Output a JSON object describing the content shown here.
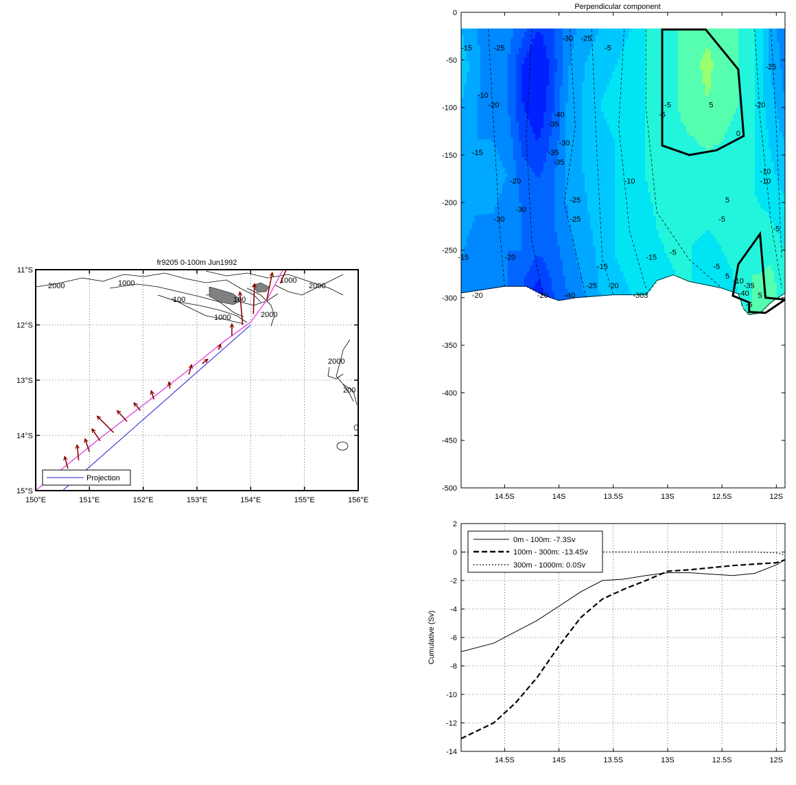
{
  "chart_data": [
    {
      "type": "map",
      "title": "fr9205 0-100m Jun1992",
      "x_ticks": [
        "150°E",
        "151°E",
        "152°E",
        "153°E",
        "154°E",
        "155°E",
        "156°E"
      ],
      "y_ticks": [
        "11°S",
        "12°S",
        "13°S",
        "14°S",
        "15°S"
      ],
      "xlim": [
        150,
        156
      ],
      "ylim": [
        -15,
        -11
      ],
      "grid": true,
      "legend": [
        {
          "label": "Projection",
          "color": "#1f1fd6"
        }
      ],
      "legend_position": "bottom-left",
      "track_color": "#e040e0",
      "projection_color": "#1f1fd6",
      "arrow_color": "#8b0000",
      "contour_labels": [
        "2000",
        "1000",
        "1000",
        "2000",
        "100",
        "100",
        "1000",
        "2000",
        "2000",
        "100",
        "100",
        "2000",
        "200"
      ],
      "projection_line": {
        "from": [
          150.5,
          -15.0
        ],
        "to": [
          154.0,
          -12.0
        ]
      },
      "track": [
        [
          150.0,
          -15.0
        ],
        [
          150.5,
          -14.6
        ],
        [
          151.2,
          -14.05
        ],
        [
          152.0,
          -13.45
        ],
        [
          152.8,
          -12.85
        ],
        [
          153.5,
          -12.3
        ],
        [
          154.0,
          -11.95
        ],
        [
          154.3,
          -11.55
        ],
        [
          154.6,
          -11.0
        ]
      ],
      "velocity_vectors": [
        {
          "lon": 150.6,
          "lat": -14.6,
          "u": -0.06,
          "v": 0.22
        },
        {
          "lon": 150.8,
          "lat": -14.45,
          "u": -0.03,
          "v": 0.28
        },
        {
          "lon": 151.0,
          "lat": -14.3,
          "u": -0.08,
          "v": 0.24
        },
        {
          "lon": 151.2,
          "lat": -14.1,
          "u": -0.15,
          "v": 0.22
        },
        {
          "lon": 151.45,
          "lat": -13.95,
          "u": -0.3,
          "v": 0.3
        },
        {
          "lon": 151.7,
          "lat": -13.75,
          "u": -0.18,
          "v": 0.2
        },
        {
          "lon": 151.95,
          "lat": -13.55,
          "u": -0.12,
          "v": 0.14
        },
        {
          "lon": 152.2,
          "lat": -13.35,
          "u": -0.05,
          "v": 0.16
        },
        {
          "lon": 152.5,
          "lat": -13.15,
          "u": -0.02,
          "v": 0.12
        },
        {
          "lon": 152.85,
          "lat": -12.9,
          "u": 0.05,
          "v": 0.18
        },
        {
          "lon": 153.1,
          "lat": -12.7,
          "u": 0.1,
          "v": 0.08
        },
        {
          "lon": 153.4,
          "lat": -12.45,
          "u": 0.04,
          "v": 0.1
        },
        {
          "lon": 153.65,
          "lat": -12.2,
          "u": 0.0,
          "v": 0.22
        },
        {
          "lon": 153.85,
          "lat": -12.0,
          "u": -0.05,
          "v": 0.6
        },
        {
          "lon": 154.05,
          "lat": -11.8,
          "u": 0.02,
          "v": 0.55
        },
        {
          "lon": 154.3,
          "lat": -11.55,
          "u": 0.1,
          "v": 0.5
        },
        {
          "lon": 154.55,
          "lat": -11.25,
          "u": 0.15,
          "v": 0.35
        }
      ]
    },
    {
      "type": "contour",
      "title": "Perpendicular component",
      "x_ticks": [
        "14.5S",
        "14S",
        "13.5S",
        "13S",
        "12.5S",
        "12S"
      ],
      "x_tick_values": [
        -14.5,
        -14.0,
        -13.5,
        -13.0,
        -12.5,
        -12.0
      ],
      "xlim": [
        -14.9,
        -11.92
      ],
      "y_ticks": [
        "0",
        "-50",
        "-100",
        "-150",
        "-200",
        "-250",
        "-300",
        "-350",
        "-400",
        "-450",
        "-500"
      ],
      "ylim": [
        -500,
        0
      ],
      "data_top_depth": -17,
      "levels": [
        -40,
        -35,
        -30,
        -25,
        -20,
        -15,
        -10,
        -5,
        0,
        5,
        10,
        15,
        20,
        25
      ],
      "colors": [
        "#0020ff",
        "#0044ff",
        "#0066ff",
        "#0088ff",
        "#00a8ff",
        "#00c8ff",
        "#00e4f4",
        "#22f5dc",
        "#56ffb0",
        "#9aff6e",
        "#d6ff3a",
        "#ffec00",
        "#ffb000",
        "#ff7000"
      ],
      "bottom_profile": [
        [
          -14.9,
          -295
        ],
        [
          -14.5,
          -288
        ],
        [
          -14.3,
          -288
        ],
        [
          -14.15,
          -297
        ],
        [
          -14.0,
          -303
        ],
        [
          -13.85,
          -300
        ],
        [
          -13.5,
          -297
        ],
        [
          -13.2,
          -297
        ],
        [
          -13.1,
          -282
        ],
        [
          -12.95,
          -276
        ],
        [
          -12.8,
          -283
        ],
        [
          -12.5,
          -290
        ],
        [
          -12.35,
          -296
        ],
        [
          -12.3,
          -312
        ],
        [
          -12.25,
          -318
        ],
        [
          -12.15,
          -316
        ],
        [
          -12.05,
          -305
        ],
        [
          -11.92,
          -295
        ]
      ],
      "contour_labels": [
        "-15",
        "-25",
        "-30",
        "-25",
        "-10",
        "-5",
        "-20",
        "-5",
        "5",
        "0",
        "-35",
        "-30",
        "-15",
        "-40",
        "-35",
        "-10",
        "-20",
        "-15",
        "-20",
        "-15",
        "-30",
        "-25",
        "-5",
        "5",
        "-10",
        "-30",
        "-25",
        "-20",
        "-35",
        "-25",
        "5",
        "-15",
        "-5",
        "-20",
        "-10",
        "-25",
        "-40",
        "-5",
        "-20",
        "-5",
        "-5",
        "-10",
        "-5",
        "-303",
        "-35",
        "5",
        "-40",
        "-20"
      ],
      "values": [
        [
          -15,
          -20,
          -25,
          -22,
          -28,
          -35,
          -30,
          -22,
          -18,
          -15,
          -12,
          -10,
          -5,
          -2,
          0,
          3,
          4,
          2,
          0,
          -5,
          -15,
          -25
        ],
        [
          -12,
          -18,
          -25,
          -25,
          -35,
          -42,
          -32,
          -20,
          -15,
          -12,
          -10,
          -8,
          -5,
          -2,
          0,
          4,
          6,
          3,
          0,
          -5,
          -15,
          -22
        ],
        [
          -15,
          -20,
          -22,
          -25,
          -35,
          -40,
          -30,
          -18,
          -14,
          -10,
          -8,
          -8,
          -5,
          -2,
          0,
          3,
          5,
          2,
          0,
          -5,
          -12,
          -20
        ],
        [
          -15,
          -20,
          -20,
          -22,
          -32,
          -35,
          -28,
          -18,
          -14,
          -12,
          -10,
          -8,
          -5,
          -3,
          -1,
          0,
          1,
          0,
          -2,
          -5,
          -10,
          -15
        ],
        [
          -15,
          -20,
          -18,
          -20,
          -28,
          -30,
          -25,
          -18,
          -15,
          -12,
          -10,
          -8,
          -5,
          -3,
          -2,
          -2,
          -2,
          -3,
          -4,
          -5,
          -8,
          -12
        ],
        [
          -18,
          -20,
          -20,
          -22,
          -25,
          -28,
          -25,
          -20,
          -16,
          -13,
          -10,
          -8,
          -6,
          -4,
          -3,
          -3,
          -4,
          -4,
          -3,
          -2,
          -4,
          -8
        ],
        [
          -20,
          -22,
          -22,
          -25,
          -25,
          -30,
          -28,
          -22,
          -18,
          -14,
          -10,
          -8,
          -6,
          -5,
          -4,
          -5,
          -6,
          -5,
          -3,
          0,
          0,
          -5
        ],
        [
          -25,
          -25,
          -25,
          -25,
          -30,
          -38,
          -30,
          -25,
          -20,
          -15,
          -12,
          -10,
          -8,
          -6,
          -5,
          -5,
          -6,
          -8,
          -5,
          2,
          5,
          -5
        ]
      ],
      "zero_contours": true
    },
    {
      "type": "line",
      "x_ticks": [
        "14.5S",
        "14S",
        "13.5S",
        "13S",
        "12.5S",
        "12S"
      ],
      "x_tick_values": [
        -14.5,
        -14.0,
        -13.5,
        -13.0,
        -12.5,
        -12.0
      ],
      "xlim": [
        -14.9,
        -11.92
      ],
      "ylabel": "Cumulative (Sv)",
      "y_ticks": [
        "2",
        "0",
        "-2",
        "-4",
        "-6",
        "-8",
        "-10",
        "-12",
        "-14"
      ],
      "ylim": [
        -14,
        2
      ],
      "grid": true,
      "legend_position": "top-left",
      "series": [
        {
          "name": "0m - 100m: -7.3Sv",
          "style": "solid",
          "x": [
            -14.9,
            -14.6,
            -14.4,
            -14.2,
            -14.0,
            -13.8,
            -13.6,
            -13.4,
            -13.2,
            -13.0,
            -12.8,
            -12.6,
            -12.4,
            -12.2,
            -12.0,
            -11.92
          ],
          "y": [
            -7.0,
            -6.4,
            -5.6,
            -4.8,
            -3.8,
            -2.8,
            -2.0,
            -1.9,
            -1.65,
            -1.45,
            -1.45,
            -1.55,
            -1.65,
            -1.5,
            -0.9,
            -0.55
          ]
        },
        {
          "name": "100m - 300m: -13.4Sv",
          "style": "dashed",
          "x": [
            -14.9,
            -14.6,
            -14.4,
            -14.2,
            -14.0,
            -13.8,
            -13.6,
            -13.4,
            -13.2,
            -13.0,
            -12.8,
            -12.6,
            -12.4,
            -12.2,
            -12.0,
            -11.92
          ],
          "y": [
            -13.1,
            -12.0,
            -10.6,
            -8.8,
            -6.6,
            -4.6,
            -3.3,
            -2.6,
            -2.0,
            -1.35,
            -1.25,
            -1.1,
            -0.95,
            -0.85,
            -0.75,
            -0.55
          ]
        },
        {
          "name": "300m - 1000m:  0.0Sv",
          "style": "dotted",
          "x": [
            -14.9,
            -14.0,
            -13.0,
            -12.5,
            -12.2,
            -12.0,
            -11.92
          ],
          "y": [
            0,
            0,
            0,
            0,
            0,
            -0.05,
            -0.2
          ]
        }
      ]
    }
  ]
}
